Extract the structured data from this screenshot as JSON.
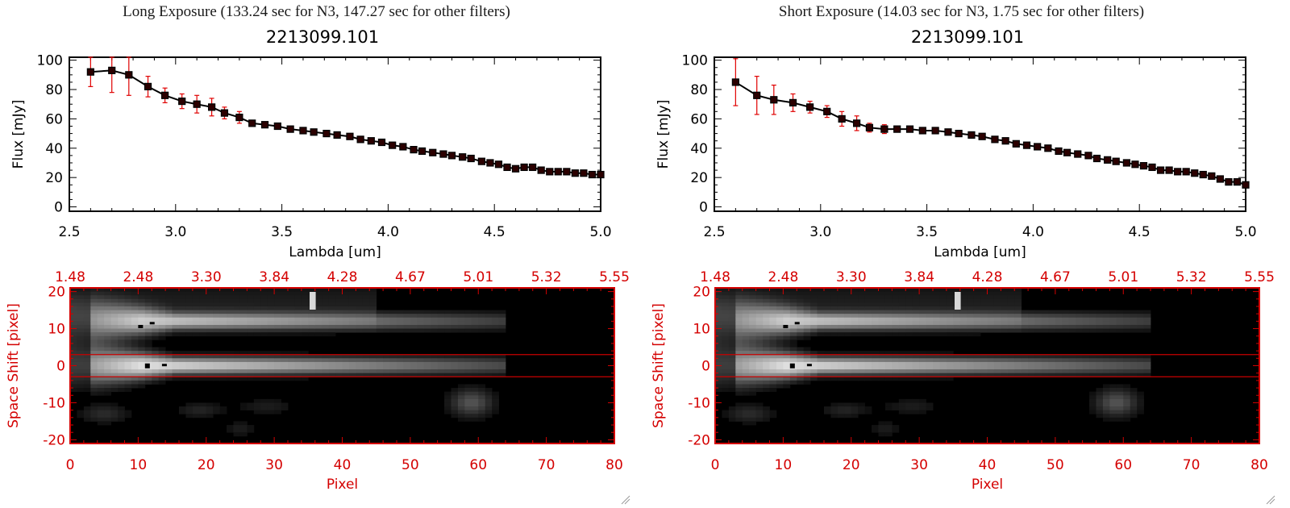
{
  "panels": [
    {
      "exposure_title": "Long Exposure (133.24 sec for N3, 147.27 sec for other filters)",
      "object_title": "2213099.101"
    },
    {
      "exposure_title": "Short Exposure (14.03 sec for N3, 1.75 sec for other filters)",
      "object_title": "2213099.101"
    }
  ],
  "colors": {
    "axis": "#000000",
    "error_bar": "#e00000",
    "marker_fill": "#2b0000",
    "image_axis": "#d40000",
    "aperture_line": "#c80000"
  },
  "chart_data": [
    {
      "type": "line",
      "title": "2213099.101",
      "xlabel": "Lambda [um]",
      "ylabel": "Flux [mJy]",
      "xlim": [
        2.5,
        5.0
      ],
      "ylim": [
        -3,
        102
      ],
      "xticks": [
        "2.5",
        "3.0",
        "3.5",
        "4.0",
        "4.5",
        "5.0"
      ],
      "yticks": [
        "0",
        "20",
        "40",
        "60",
        "80",
        "100"
      ],
      "x": [
        2.6,
        2.7,
        2.78,
        2.87,
        2.95,
        3.03,
        3.1,
        3.17,
        3.23,
        3.3,
        3.36,
        3.42,
        3.48,
        3.54,
        3.6,
        3.65,
        3.71,
        3.76,
        3.82,
        3.87,
        3.92,
        3.97,
        4.02,
        4.07,
        4.12,
        4.16,
        4.21,
        4.26,
        4.3,
        4.35,
        4.39,
        4.44,
        4.48,
        4.52,
        4.56,
        4.6,
        4.64,
        4.68,
        4.72,
        4.76,
        4.8,
        4.84,
        4.88,
        4.92,
        4.96,
        5.0
      ],
      "y": [
        92,
        93,
        90,
        82,
        76,
        72,
        70,
        68,
        64,
        61,
        57,
        56,
        55,
        53,
        52,
        51,
        50,
        49,
        48,
        46,
        45,
        44,
        42,
        41,
        39,
        38,
        37,
        36,
        35,
        34,
        33,
        31,
        30,
        29,
        27,
        26,
        27,
        27,
        25,
        24,
        24,
        24,
        23,
        23,
        22,
        22
      ],
      "yerr": [
        10,
        15,
        14,
        7,
        5,
        5,
        6,
        6,
        4,
        4,
        2,
        2,
        1.5,
        1.5,
        1.5,
        1.5,
        1.5,
        1.5,
        1.5,
        1.5,
        1.5,
        1.5,
        1.5,
        1.5,
        1.5,
        1.5,
        1.5,
        1.5,
        1.5,
        1.5,
        1.5,
        1.5,
        1.5,
        1.5,
        1.5,
        1.5,
        1.5,
        1.5,
        1.5,
        1.5,
        1.5,
        1.5,
        1.5,
        1.5,
        1.5,
        1.5
      ]
    },
    {
      "type": "line",
      "title": "2213099.101",
      "xlabel": "Lambda [um]",
      "ylabel": "Flux [mJy]",
      "xlim": [
        2.5,
        5.0
      ],
      "ylim": [
        -3,
        102
      ],
      "xticks": [
        "2.5",
        "3.0",
        "3.5",
        "4.0",
        "4.5",
        "5.0"
      ],
      "yticks": [
        "0",
        "20",
        "40",
        "60",
        "80",
        "100"
      ],
      "x": [
        2.6,
        2.7,
        2.78,
        2.87,
        2.95,
        3.03,
        3.1,
        3.17,
        3.23,
        3.3,
        3.36,
        3.42,
        3.48,
        3.54,
        3.6,
        3.65,
        3.71,
        3.76,
        3.82,
        3.87,
        3.92,
        3.97,
        4.02,
        4.07,
        4.12,
        4.16,
        4.21,
        4.26,
        4.3,
        4.35,
        4.39,
        4.44,
        4.48,
        4.52,
        4.56,
        4.6,
        4.64,
        4.68,
        4.72,
        4.76,
        4.8,
        4.84,
        4.88,
        4.92,
        4.96,
        5.0
      ],
      "y": [
        85,
        76,
        73,
        71,
        68,
        65,
        60,
        57,
        54,
        53,
        53,
        53,
        52,
        52,
        51,
        50,
        49,
        48,
        46,
        45,
        43,
        42,
        41,
        40,
        38,
        37,
        36,
        35,
        33,
        32,
        31,
        30,
        29,
        28,
        27,
        25,
        25,
        24,
        24,
        23,
        22,
        21,
        19,
        17,
        17,
        15
      ],
      "yerr": [
        16,
        13,
        10,
        6,
        4,
        4,
        5,
        5,
        3,
        3,
        2,
        1.5,
        1.5,
        1.5,
        1.5,
        1.5,
        1.5,
        1.5,
        1.5,
        1.5,
        1.5,
        1.5,
        1.5,
        1.5,
        1.5,
        1.5,
        1.5,
        1.5,
        1.5,
        1.5,
        1.5,
        1.5,
        1.5,
        1.5,
        1.5,
        1.5,
        1.5,
        1.5,
        1.5,
        1.5,
        1.5,
        1.5,
        1.5,
        1.5,
        1.5,
        1.5
      ]
    },
    {
      "type": "heatmap",
      "xlabel": "Pixel",
      "ylabel": "Space Shift [pixel]",
      "xlim": [
        0,
        80
      ],
      "ylim": [
        -21,
        21
      ],
      "xticks": [
        "0",
        "10",
        "20",
        "30",
        "40",
        "50",
        "60",
        "70",
        "80"
      ],
      "yticks": [
        "-20",
        "-10",
        "0",
        "10",
        "20"
      ],
      "top_ticks": [
        "1.48",
        "2.48",
        "3.30",
        "3.84",
        "4.28",
        "4.67",
        "5.01",
        "5.32",
        "5.55"
      ],
      "aperture_lines": [
        3,
        -3
      ]
    },
    {
      "type": "heatmap",
      "xlabel": "Pixel",
      "ylabel": "Space Shift [pixel]",
      "xlim": [
        0,
        80
      ],
      "ylim": [
        -21,
        21
      ],
      "xticks": [
        "0",
        "10",
        "20",
        "30",
        "40",
        "50",
        "60",
        "70",
        "80"
      ],
      "yticks": [
        "-20",
        "-10",
        "0",
        "10",
        "20"
      ],
      "top_ticks": [
        "1.48",
        "2.48",
        "3.30",
        "3.84",
        "4.28",
        "4.67",
        "5.01",
        "5.32",
        "5.55"
      ],
      "aperture_lines": [
        3,
        -3
      ]
    }
  ]
}
